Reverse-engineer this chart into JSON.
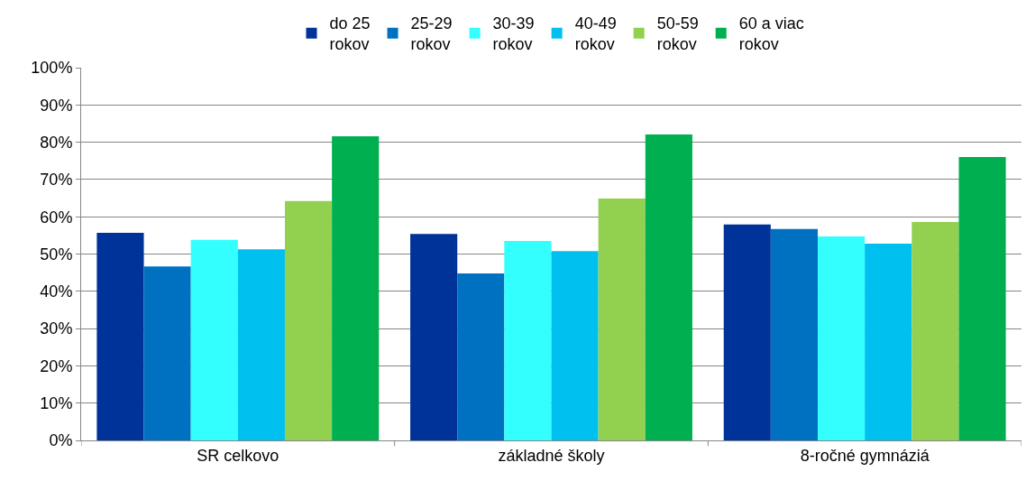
{
  "chart_data": {
    "type": "bar",
    "categories": [
      "SR celkovo",
      "základné školy",
      "8-ročné gymnáziá"
    ],
    "series": [
      {
        "name": "do 25 rokov",
        "color": "#003399",
        "values": [
          55.7,
          55.4,
          57.9
        ]
      },
      {
        "name": "25-29 rokov",
        "color": "#0070c0",
        "values": [
          46.7,
          44.8,
          56.7
        ]
      },
      {
        "name": "30-39 rokov",
        "color": "#33ffff",
        "values": [
          53.8,
          53.5,
          54.7
        ]
      },
      {
        "name": "40-49 rokov",
        "color": "#00c0f0",
        "values": [
          51.3,
          50.8,
          52.8
        ]
      },
      {
        "name": "50-59 rokov",
        "color": "#92d050",
        "values": [
          64.2,
          64.9,
          58.6
        ]
      },
      {
        "name": "60 a viac rokov",
        "color": "#00b050",
        "values": [
          81.6,
          82.1,
          76.0
        ]
      }
    ],
    "ylim": [
      0,
      100
    ],
    "yticks": [
      {
        "value": 0,
        "label": "0%"
      },
      {
        "value": 10,
        "label": "10%"
      },
      {
        "value": 20,
        "label": "20%"
      },
      {
        "value": 30,
        "label": "30%"
      },
      {
        "value": 40,
        "label": "40%"
      },
      {
        "value": 50,
        "label": "50%"
      },
      {
        "value": 60,
        "label": "60%"
      },
      {
        "value": 70,
        "label": "70%"
      },
      {
        "value": 80,
        "label": "80%"
      },
      {
        "value": 90,
        "label": "90%"
      },
      {
        "value": 100,
        "label": "100%"
      }
    ],
    "grid": "y",
    "legend": "top"
  }
}
